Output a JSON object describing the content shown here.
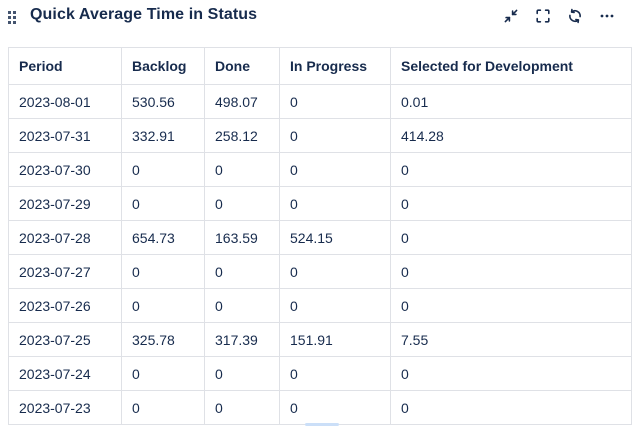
{
  "widget": {
    "title": "Quick Average Time in Status",
    "toolbar": {
      "icons": [
        "collapse",
        "fullscreen",
        "refresh",
        "more-options"
      ]
    }
  },
  "table": {
    "columns": [
      "Period",
      "Backlog",
      "Done",
      "In Progress",
      "Selected for Development"
    ],
    "rows": [
      [
        "2023-08-01",
        "530.56",
        "498.07",
        "0",
        "0.01"
      ],
      [
        "2023-07-31",
        "332.91",
        "258.12",
        "0",
        "414.28"
      ],
      [
        "2023-07-30",
        "0",
        "0",
        "0",
        "0"
      ],
      [
        "2023-07-29",
        "0",
        "0",
        "0",
        "0"
      ],
      [
        "2023-07-28",
        "654.73",
        "163.59",
        "524.15",
        "0"
      ],
      [
        "2023-07-27",
        "0",
        "0",
        "0",
        "0"
      ],
      [
        "2023-07-26",
        "0",
        "0",
        "0",
        "0"
      ],
      [
        "2023-07-25",
        "325.78",
        "317.39",
        "151.91",
        "7.55"
      ],
      [
        "2023-07-24",
        "0",
        "0",
        "0",
        "0"
      ],
      [
        "2023-07-23",
        "0",
        "0",
        "0",
        "0"
      ]
    ]
  },
  "colors": {
    "text": "#172b4d",
    "border": "#dfe1e6",
    "scrollbar_thumb": "#cbdff8"
  }
}
